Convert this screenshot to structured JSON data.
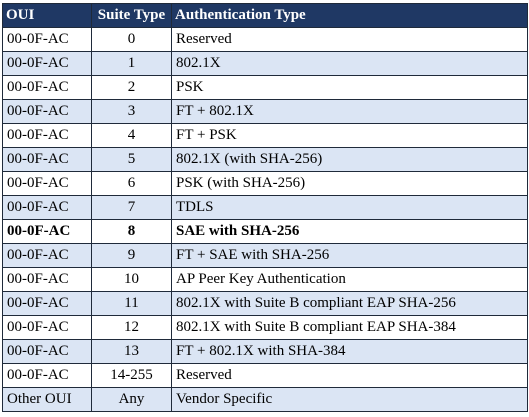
{
  "table": {
    "headers": [
      "OUI",
      "Suite Type",
      "Authentication Type"
    ],
    "rows": [
      {
        "oui": "00-0F-AC",
        "suite": "0",
        "auth": "Reserved",
        "bold": false
      },
      {
        "oui": "00-0F-AC",
        "suite": "1",
        "auth": "802.1X",
        "bold": false
      },
      {
        "oui": "00-0F-AC",
        "suite": "2",
        "auth": "PSK",
        "bold": false
      },
      {
        "oui": "00-0F-AC",
        "suite": "3",
        "auth": "FT + 802.1X",
        "bold": false
      },
      {
        "oui": "00-0F-AC",
        "suite": "4",
        "auth": "FT + PSK",
        "bold": false
      },
      {
        "oui": "00-0F-AC",
        "suite": "5",
        "auth": "802.1X (with SHA-256)",
        "bold": false
      },
      {
        "oui": "00-0F-AC",
        "suite": "6",
        "auth": "PSK (with SHA-256)",
        "bold": false
      },
      {
        "oui": "00-0F-AC",
        "suite": "7",
        "auth": "TDLS",
        "bold": false
      },
      {
        "oui": "00-0F-AC",
        "suite": "8",
        "auth": "SAE with SHA-256",
        "bold": true
      },
      {
        "oui": "00-0F-AC",
        "suite": "9",
        "auth": "FT + SAE with SHA-256",
        "bold": false
      },
      {
        "oui": "00-0F-AC",
        "suite": "10",
        "auth": "AP Peer Key Authentication",
        "bold": false
      },
      {
        "oui": "00-0F-AC",
        "suite": "11",
        "auth": "802.1X with Suite B compliant EAP SHA-256",
        "bold": false
      },
      {
        "oui": "00-0F-AC",
        "suite": "12",
        "auth": "802.1X with Suite B compliant EAP SHA-384",
        "bold": false
      },
      {
        "oui": "00-0F-AC",
        "suite": "13",
        "auth": "FT + 802.1X with SHA-384",
        "bold": false
      },
      {
        "oui": "00-0F-AC",
        "suite": "14-255",
        "auth": "Reserved",
        "bold": false
      },
      {
        "oui": "Other OUI",
        "suite": "Any",
        "auth": "Vendor Specific",
        "bold": false
      }
    ],
    "colors": {
      "header_bg": "#1f3864",
      "header_text": "#ffffff",
      "band_bg": "#dbe5f4",
      "plain_bg": "#ffffff",
      "border": "#1f2a3a"
    }
  }
}
